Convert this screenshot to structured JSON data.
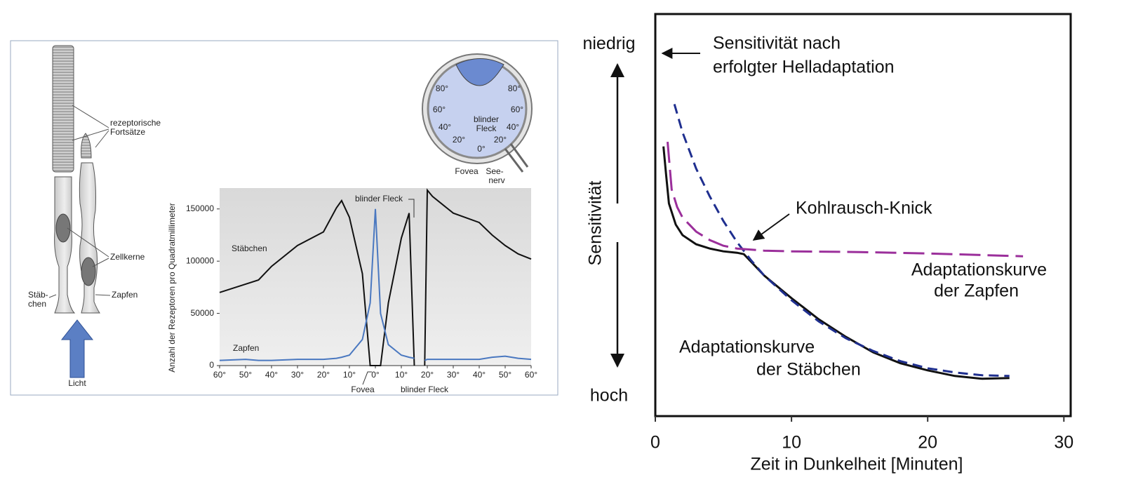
{
  "diagram": {
    "cell_labels": [
      {
        "lines": [
          "rezeptorische",
          "Fortsätze"
        ]
      },
      {
        "lines": [
          "Zellkerne"
        ]
      },
      {
        "lines": [
          "Stäb-",
          "chen"
        ]
      },
      {
        "lines": [
          "Zapfen"
        ]
      },
      {
        "lines": [
          "Licht"
        ]
      }
    ],
    "eye_labels": [
      "80°",
      "60°",
      "40°",
      "20°",
      "0°",
      "80°",
      "60°",
      "40°",
      "20°",
      "blinder",
      "Fleck",
      "Fovea",
      "See-",
      "nerv"
    ]
  },
  "chart_data": [
    {
      "type": "line",
      "y_label": "Anzahl der Rezeptoren pro Quadratmillimeter",
      "x": [
        -60,
        -50,
        -45,
        -40,
        -30,
        -20,
        -15,
        -13,
        -10,
        -5,
        -2,
        0,
        2,
        5,
        10,
        13,
        15,
        17,
        19,
        20,
        22,
        30,
        40,
        45,
        50,
        55,
        60
      ],
      "series": [
        {
          "name": "Stäbchen",
          "color": "#111111",
          "style": "solid",
          "values": [
            70000,
            78000,
            82000,
            95000,
            115000,
            128000,
            151000,
            158000,
            142000,
            88000,
            0,
            0,
            0,
            60000,
            122000,
            146000,
            0,
            null,
            0,
            168000,
            162000,
            146000,
            137000,
            125000,
            115000,
            107000,
            102000
          ]
        },
        {
          "name": "Zapfen",
          "color": "#4a78c0",
          "style": "solid",
          "values": [
            5000,
            6000,
            5000,
            5000,
            6000,
            6000,
            7000,
            8000,
            10000,
            25000,
            60000,
            150000,
            50000,
            20000,
            10000,
            8000,
            7000,
            null,
            5000,
            6000,
            6000,
            6000,
            6000,
            8000,
            9000,
            7000,
            6000
          ]
        }
      ],
      "xlim": [
        -60,
        60
      ],
      "xticks": [
        {
          "value": -60,
          "label": "60°"
        },
        {
          "value": -50,
          "label": "50°"
        },
        {
          "value": -40,
          "label": "40°"
        },
        {
          "value": -30,
          "label": "30°"
        },
        {
          "value": -20,
          "label": "20°"
        },
        {
          "value": -10,
          "label": "10°"
        },
        {
          "value": 0,
          "label": "0°"
        },
        {
          "value": 10,
          "label": "10°"
        },
        {
          "value": 20,
          "label": "20°"
        },
        {
          "value": 30,
          "label": "30°"
        },
        {
          "value": 40,
          "label": "40°"
        },
        {
          "value": 50,
          "label": "50°"
        },
        {
          "value": 60,
          "label": "60°"
        }
      ],
      "ylim": [
        0,
        170000
      ],
      "yticks": [
        0,
        50000,
        100000,
        150000
      ],
      "annotations": [
        "blinder Fleck",
        "Fovea",
        "blinder Fleck"
      ]
    },
    {
      "type": "line",
      "x_label": "Zeit in Dunkelheit [Minuten]",
      "y_label": "Sensitivität",
      "series": [
        {
          "color": "#111111",
          "style": "solid",
          "x": [
            0.6,
            0.8,
            1,
            1.5,
            2,
            3,
            4,
            5,
            6,
            6.5,
            8,
            10,
            12,
            14,
            16,
            18,
            20,
            22,
            24,
            26
          ],
          "values": [
            71,
            62.7,
            54.8,
            48.8,
            45.8,
            43.2,
            42,
            41.2,
            40.8,
            40.4,
            34.3,
            27.9,
            21.9,
            16.9,
            12.5,
            9.4,
            7.4,
            5.8,
            5,
            5.2
          ]
        },
        {
          "color": "#1f2f8f",
          "style": "dashed",
          "x": [
            1.4,
            2,
            3,
            4,
            5,
            6,
            7,
            8,
            10,
            12,
            14,
            16,
            18,
            20,
            22,
            24,
            26
          ],
          "values": [
            83,
            75,
            64.7,
            56.8,
            49.8,
            43.8,
            38.8,
            34.3,
            27.3,
            21.3,
            16.5,
            12.9,
            10,
            8,
            6.8,
            6,
            5.8
          ]
        },
        {
          "color": "#9b2f9b",
          "style": "longdash",
          "x": [
            0.9,
            1.2,
            1.6,
            2,
            3,
            4,
            5,
            6,
            8,
            10,
            15,
            20,
            27
          ],
          "values": [
            72.3,
            58.8,
            53.8,
            50.8,
            46.8,
            44.4,
            42.8,
            42,
            41.4,
            41.2,
            41,
            40.6,
            39.8
          ]
        }
      ],
      "xlim": [
        0,
        30.5
      ],
      "xticks": [
        0,
        10,
        20,
        30
      ],
      "ylim": [
        -5.6,
        108.6
      ],
      "yticks": [
        {
          "value": 100,
          "label": "niedrig"
        },
        {
          "value": 0,
          "label": "hoch"
        }
      ],
      "annotations": [
        {
          "lines": [
            "Sensitivität nach",
            "erfolgter Helladaptation"
          ]
        },
        {
          "lines": [
            "Kohlrausch-Knick"
          ]
        },
        {
          "lines": [
            "Adaptationskurve",
            "der Zapfen"
          ]
        },
        {
          "lines": [
            "Adaptationskurve",
            "der Stäbchen"
          ]
        }
      ]
    }
  ]
}
